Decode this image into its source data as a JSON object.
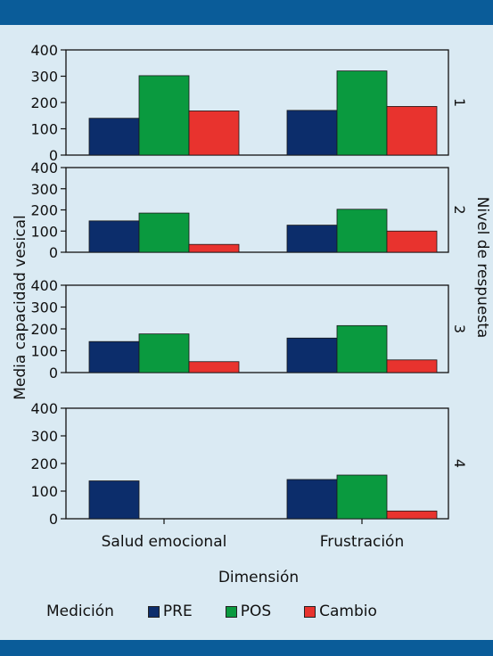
{
  "chart_data": {
    "type": "bar",
    "ylabel": "Media capacidad vesical",
    "xlabel": "Dimensión",
    "facet_label": "Nivel de respuesta",
    "categories": [
      "Salud emocional",
      "Frustración"
    ],
    "ylim": [
      0,
      400
    ],
    "yticks": [
      0,
      100,
      200,
      300,
      400
    ],
    "legend_title": "Medición",
    "legend_position": "bottom",
    "series_names": [
      "PRE",
      "POS",
      "Cambio"
    ],
    "colors": {
      "PRE": "#0c2d6b",
      "POS": "#0a9a3f",
      "Cambio": "#e8332e"
    },
    "panels": [
      {
        "label": "1",
        "series": [
          {
            "name": "PRE",
            "values": [
              140,
              170
            ]
          },
          {
            "name": "POS",
            "values": [
              302,
              320
            ]
          },
          {
            "name": "Cambio",
            "values": [
              168,
              185
            ]
          }
        ]
      },
      {
        "label": "2",
        "series": [
          {
            "name": "PRE",
            "values": [
              148,
              128
            ]
          },
          {
            "name": "POS",
            "values": [
              185,
              203
            ]
          },
          {
            "name": "Cambio",
            "values": [
              37,
              100
            ]
          }
        ]
      },
      {
        "label": "3",
        "series": [
          {
            "name": "PRE",
            "values": [
              142,
              158
            ]
          },
          {
            "name": "POS",
            "values": [
              177,
              215
            ]
          },
          {
            "name": "Cambio",
            "values": [
              50,
              58
            ]
          }
        ]
      },
      {
        "label": "4",
        "series": [
          {
            "name": "PRE",
            "values": [
              137,
              142
            ]
          },
          {
            "name": "POS",
            "values": [
              null,
              158
            ]
          },
          {
            "name": "Cambio",
            "values": [
              null,
              28
            ]
          }
        ]
      }
    ]
  }
}
